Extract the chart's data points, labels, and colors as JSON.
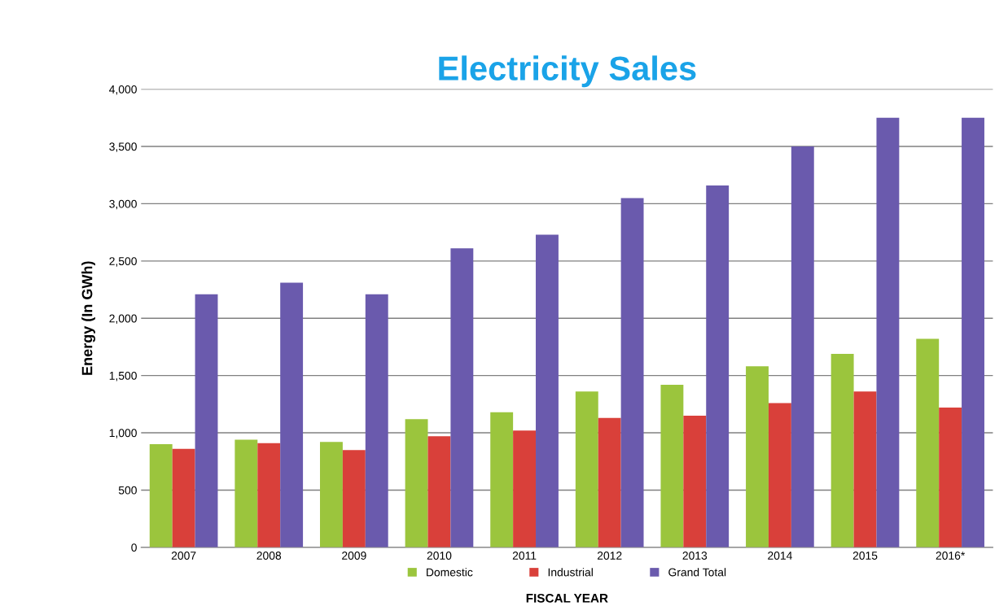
{
  "chart_data": {
    "type": "bar",
    "title": "Electricity Sales",
    "xlabel": "FISCAL YEAR",
    "ylabel": "Energy (In GWh)",
    "categories": [
      "2007",
      "2008",
      "2009",
      "2010",
      "2011",
      "2012",
      "2013",
      "2014",
      "2015",
      "2016*"
    ],
    "series": [
      {
        "name": "Domestic",
        "color": "#9bc53d",
        "values": [
          900,
          940,
          920,
          1120,
          1180,
          1360,
          1420,
          1580,
          1690,
          1820
        ]
      },
      {
        "name": "Industrial",
        "color": "#d9403a",
        "values": [
          860,
          910,
          850,
          970,
          1020,
          1130,
          1150,
          1260,
          1360,
          1220
        ]
      },
      {
        "name": "Grand Total",
        "color": "#6a5aad",
        "values": [
          2210,
          2310,
          2210,
          2610,
          2730,
          3050,
          3160,
          3500,
          3750,
          3750
        ]
      }
    ],
    "ylim": [
      0,
      4000
    ],
    "yticks": [
      {
        "value": 0,
        "label": "0"
      },
      {
        "value": 500,
        "label": "500"
      },
      {
        "value": 1000,
        "label": "1,000"
      },
      {
        "value": 1500,
        "label": "1,500"
      },
      {
        "value": 2000,
        "label": "2,000"
      },
      {
        "value": 2500,
        "label": "2,500"
      },
      {
        "value": 3000,
        "label": "3,000"
      },
      {
        "value": 3500,
        "label": "3,500"
      },
      {
        "value": 4000,
        "label": "4,000"
      }
    ],
    "grid": "y",
    "legend": "bottom"
  }
}
